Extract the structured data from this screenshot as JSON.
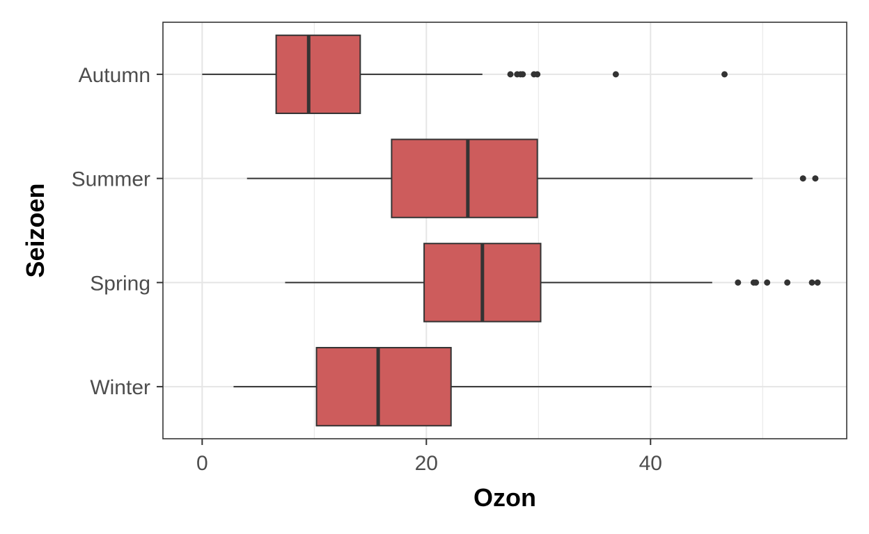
{
  "chart_data": {
    "type": "boxplot",
    "orientation": "horizontal",
    "title": "",
    "xlabel": "Ozon",
    "ylabel": "Seizoen",
    "xlim": [
      -3.5,
      57.5
    ],
    "x_ticks": [
      0,
      20,
      40
    ],
    "grid": true,
    "legend": "none",
    "categories": [
      "Autumn",
      "Summer",
      "Spring",
      "Winter"
    ],
    "series": [
      {
        "category": "Autumn",
        "whisker_low": 0.0,
        "q1": 6.6,
        "median": 9.5,
        "q3": 14.1,
        "whisker_high": 25.0,
        "outliers": [
          27.5,
          28.1,
          28.4,
          28.6,
          29.6,
          29.9,
          36.9,
          46.6
        ]
      },
      {
        "category": "Summer",
        "whisker_low": 4.0,
        "q1": 16.9,
        "median": 23.7,
        "q3": 29.9,
        "whisker_high": 49.1,
        "outliers": [
          53.6,
          54.7
        ]
      },
      {
        "category": "Spring",
        "whisker_low": 7.4,
        "q1": 19.8,
        "median": 25.0,
        "q3": 30.2,
        "whisker_high": 45.5,
        "outliers": [
          47.8,
          49.2,
          49.4,
          50.4,
          52.2,
          54.4,
          54.9
        ]
      },
      {
        "category": "Winter",
        "whisker_low": 2.8,
        "q1": 10.2,
        "median": 15.7,
        "q3": 22.2,
        "whisker_high": 40.1,
        "outliers": []
      }
    ],
    "colors": {
      "box_fill": "#CD5C5C",
      "box_line": "#333333",
      "outlier": "#333333",
      "grid": "#e5e5e5",
      "panel_border": "#333333",
      "tick_text": "#4d4d4d"
    }
  }
}
